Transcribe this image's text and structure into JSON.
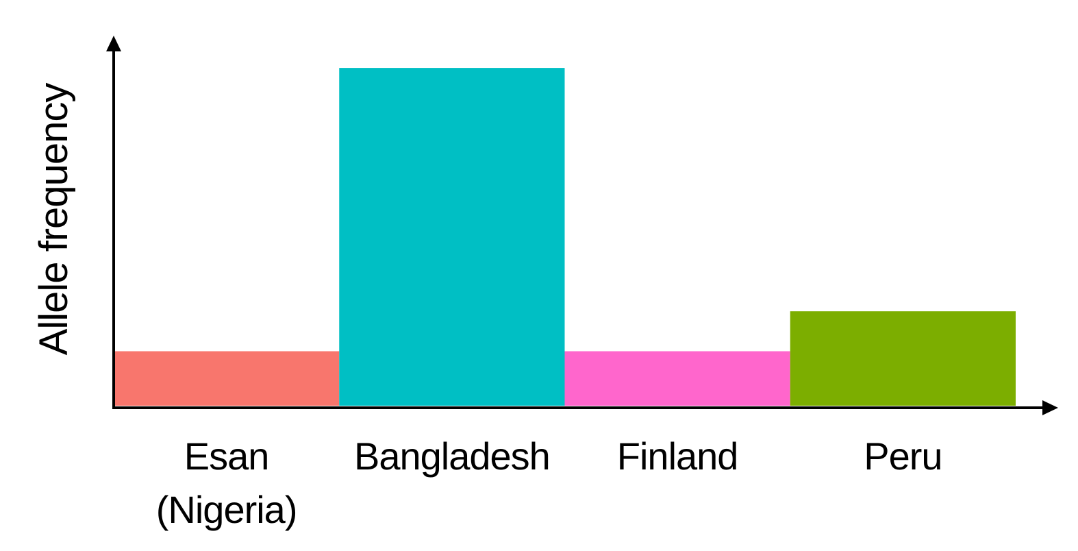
{
  "chart_data": {
    "type": "bar",
    "categories": [
      "Esan (Nigeria)",
      "Bangladesh",
      "Finland",
      "Peru"
    ],
    "category_lines": [
      [
        "Esan",
        "(Nigeria)"
      ],
      [
        "Bangladesh"
      ],
      [
        "Finland"
      ],
      [
        "Peru"
      ]
    ],
    "values": [
      0.15,
      0.93,
      0.15,
      0.26
    ],
    "colors": [
      "#f8766d",
      "#00bfc4",
      "#ff66cc",
      "#7cae00"
    ],
    "title": "",
    "xlabel": "",
    "ylabel": "Allele frequency",
    "ylim": [
      0,
      1
    ],
    "grid": false,
    "legend": "none",
    "axis_arrows": true,
    "y_ticks_shown": false
  }
}
